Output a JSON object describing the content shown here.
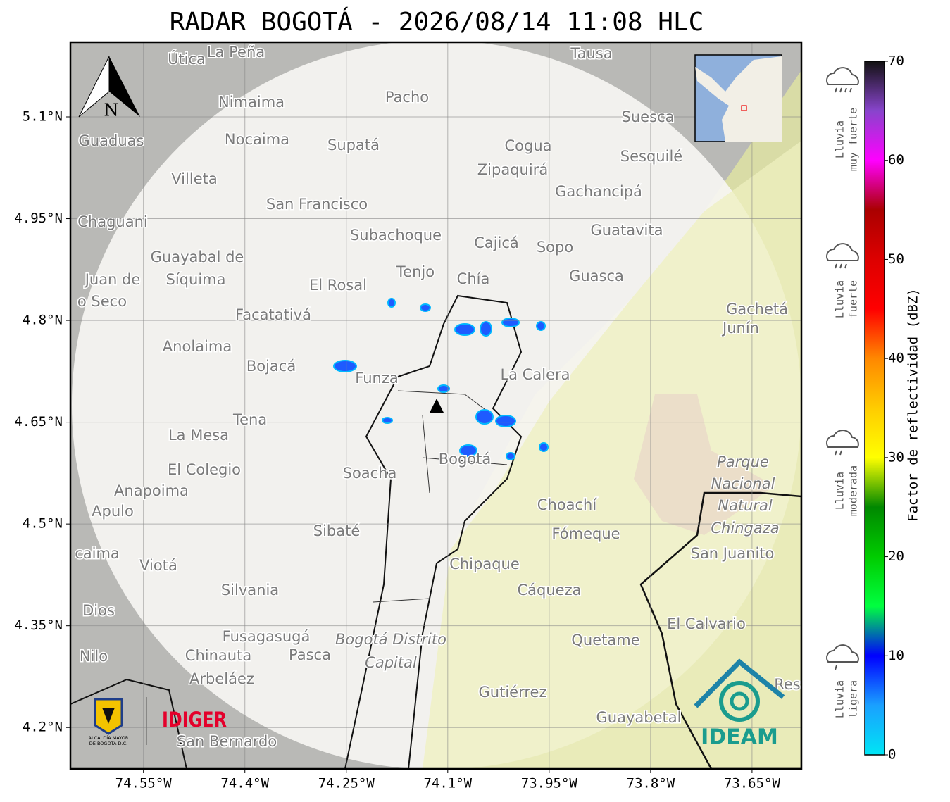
{
  "map": {
    "title": "RADAR BOGOTÁ - 2026/08/14 11:08 HLC",
    "xlim": [
      -74.658,
      -73.577
    ],
    "ylim": [
      4.139,
      5.21
    ],
    "xticks": [
      {
        "value": -74.55,
        "label": "74.55°W"
      },
      {
        "value": -74.4,
        "label": "74.4°W"
      },
      {
        "value": -74.25,
        "label": "74.25°W"
      },
      {
        "value": -74.1,
        "label": "74.1°W"
      },
      {
        "value": -73.95,
        "label": "73.95°W"
      },
      {
        "value": -73.8,
        "label": "73.8°W"
      },
      {
        "value": -73.65,
        "label": "73.65°W"
      }
    ],
    "yticks": [
      {
        "value": 4.2,
        "label": "4.2°N"
      },
      {
        "value": 4.35,
        "label": "4.35°N"
      },
      {
        "value": 4.5,
        "label": "4.5°N"
      },
      {
        "value": 4.65,
        "label": "4.65°N"
      },
      {
        "value": 4.8,
        "label": "4.8°N"
      },
      {
        "value": 4.95,
        "label": "4.95°N"
      },
      {
        "value": 5.1,
        "label": "5.1°N"
      }
    ],
    "grid": true,
    "north_label": "N",
    "places": [
      "Útica",
      "La Peña",
      "Tausa",
      "Pacho",
      "Nimaima",
      "Suesca",
      "Guaduas",
      "Nocaima",
      "Supatá",
      "Cogua",
      "Sesquilé",
      "Zipaquirá",
      "Villeta",
      "Gachancipá",
      "San Francisco",
      "Chaguani",
      "Guatavita",
      "Subachoque",
      "Cajicá",
      "Sopo",
      "Guayabal de",
      "Síquima",
      "Juan de",
      "Tenjo",
      "Chía",
      "Guasca",
      "El Rosal",
      "o Seco",
      "Facatativá",
      "Gachetá",
      "Junín",
      "Anolaima",
      "Bojacá",
      "Funza",
      "La Calera",
      "Tena",
      "La Mesa",
      "Parque",
      "El Colegio",
      "Soacha",
      "Bogotá",
      "Anapoima",
      "Nacional",
      "Apulo",
      "Natural",
      "Choachí",
      "Chingaza",
      "Fómeque",
      "Sibaté",
      "San Juanito",
      "caima",
      "Viotá",
      "Chipaque",
      "Silvania",
      "Cáqueza",
      "Dios",
      "El Calvario",
      "Fusagasugá",
      "Quetame",
      "Bogotá Distrito",
      "Capital",
      "Nilo",
      "Chinauta",
      "Pasca",
      "Arbeláez",
      "Gutiérrez",
      "Guayabetal",
      "San Bernardo",
      "Res"
    ],
    "colorbar": {
      "label": "Factor de reflectividad (dBZ)",
      "lim": [
        0,
        70
      ],
      "ticks": [
        0,
        10,
        20,
        30,
        40,
        50,
        60,
        70
      ],
      "colors": [
        "#00e5f5",
        "#1aa0ff",
        "#0000ff",
        "#00ff40",
        "#00cc00",
        "#008800",
        "#ffff00",
        "#ffcc00",
        "#ff8800",
        "#ff0000",
        "#dd0000",
        "#aa0000",
        "#ff00ff",
        "#8844cc",
        "#111111"
      ]
    },
    "rain_legend": [
      [
        "Lluvia",
        "muy fuerte"
      ],
      [
        "Lluvia",
        "fuerte"
      ],
      [
        "Lluvia",
        "moderada"
      ],
      [
        "Lluvia",
        "ligera"
      ]
    ],
    "logos": {
      "alcaldia": [
        "ALCALDÍA MAYOR",
        "DE BOGOTÁ D.C."
      ],
      "idiger": "IDIGER",
      "ideam": "IDEAM"
    }
  }
}
